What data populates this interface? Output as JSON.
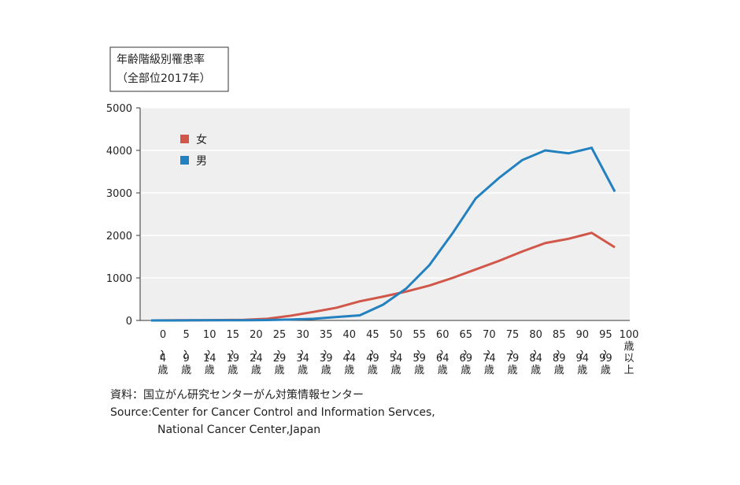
{
  "chart_data": {
    "type": "line",
    "title": "年齢階級別罹患率",
    "subtitle": "（全部位2017年）",
    "categories": [
      "0〜4歳",
      "5〜9歳",
      "10〜14歳",
      "15〜19歳",
      "20〜24歳",
      "25〜29歳",
      "30〜34歳",
      "35〜39歳",
      "40〜44歳",
      "45〜49歳",
      "50〜54歳",
      "55〜59歳",
      "60〜64歳",
      "65〜69歳",
      "70〜74歳",
      "75〜79歳",
      "80〜84歳",
      "85〜89歳",
      "90〜94歳",
      "95〜99歳",
      "100歳以上"
    ],
    "series": [
      {
        "name": "女",
        "color": "#d0574a",
        "values": [
          0,
          5,
          5,
          10,
          15,
          40,
          110,
          200,
          300,
          450,
          560,
          680,
          820,
          1000,
          1200,
          1400,
          1620,
          1820,
          1920,
          2060,
          1720
        ]
      },
      {
        "name": "男",
        "color": "#2381c0",
        "values": [
          0,
          0,
          5,
          5,
          5,
          10,
          20,
          40,
          80,
          120,
          370,
          750,
          1300,
          2050,
          2870,
          3350,
          3770,
          4000,
          3930,
          4060,
          3030
        ]
      }
    ],
    "ylim": [
      0,
      5000
    ],
    "yticks": [
      0,
      1000,
      2000,
      3000,
      4000,
      5000
    ],
    "grid": true,
    "legend": "upper left",
    "source": [
      "資料：国立がん研究センターがん対策情報センター",
      "Source:Center for Cancer Control and Information Servces,",
      "National Cancer Center,Japan"
    ]
  }
}
